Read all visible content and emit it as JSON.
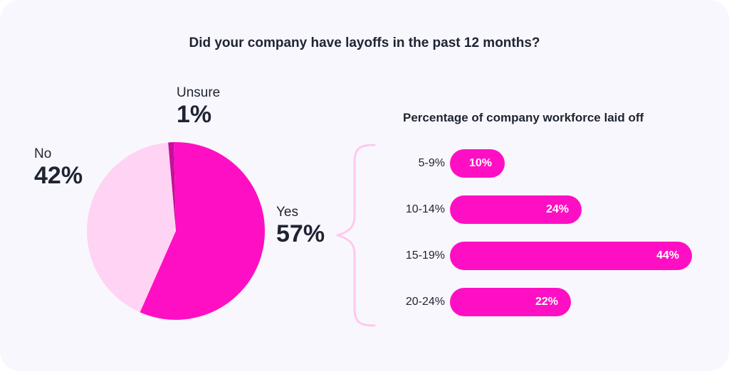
{
  "chart_data": [
    {
      "type": "pie",
      "title": "Did your company have layoffs in the past 12 months?",
      "slices": [
        {
          "label": "Unsure",
          "value": 1,
          "display": "1%",
          "color": "#c4109a"
        },
        {
          "label": "Yes",
          "value": 57,
          "display": "57%",
          "color": "#ff0fc3"
        },
        {
          "label": "No",
          "value": 42,
          "display": "42%",
          "color": "#ffd3f3"
        }
      ]
    },
    {
      "type": "bar",
      "orientation": "horizontal",
      "title": "Percentage of company workforce laid off",
      "categories": [
        "5-9%",
        "10-14%",
        "15-19%",
        "20-24%"
      ],
      "values": [
        10,
        24,
        44,
        22
      ],
      "value_labels": [
        "10%",
        "24%",
        "44%",
        "22%"
      ],
      "color": "#ff0fc3",
      "xlim": [
        0,
        44
      ]
    }
  ],
  "colors": {
    "background": "#f8f7fd",
    "brace": "#ffc8ee",
    "text": "#1f2333"
  }
}
